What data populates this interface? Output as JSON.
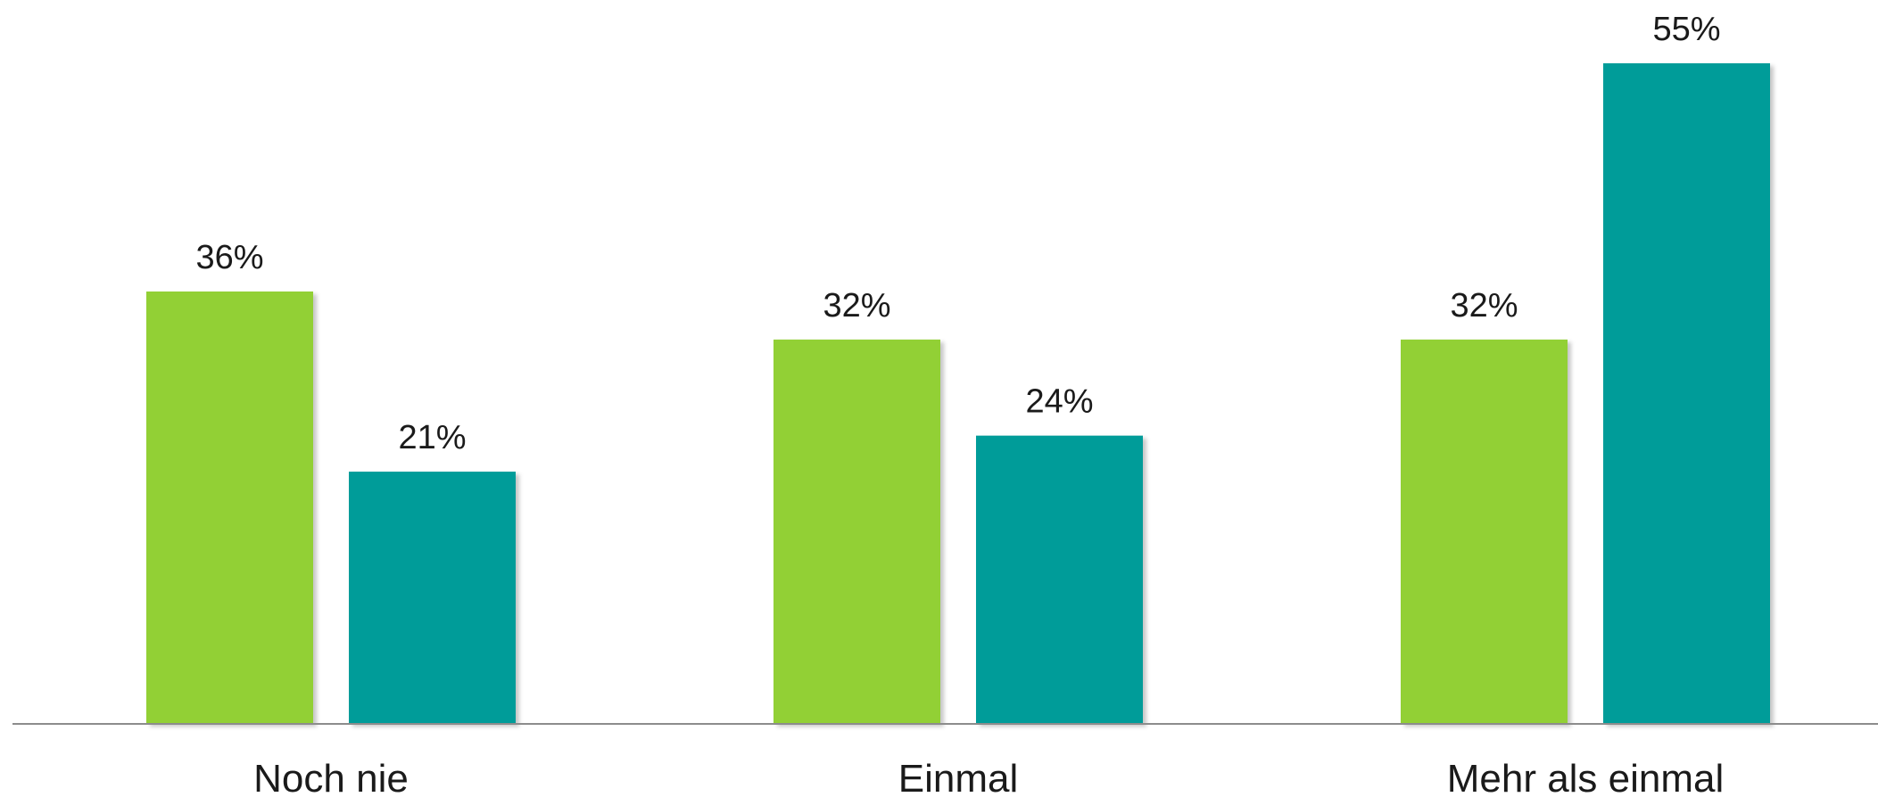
{
  "chart_data": {
    "type": "bar",
    "categories": [
      "Noch nie",
      "Einmal",
      "Mehr als einmal"
    ],
    "series": [
      {
        "values": [
          36,
          32,
          32
        ],
        "color": "#92d036"
      },
      {
        "values": [
          21,
          24,
          55
        ],
        "color": "#009c99"
      }
    ],
    "value_format": "{v}%",
    "ylim": [
      0,
      55
    ],
    "grid": false,
    "legend": "none",
    "axis_color": "#8c8c8c",
    "label_color": "#1a1a1a"
  }
}
